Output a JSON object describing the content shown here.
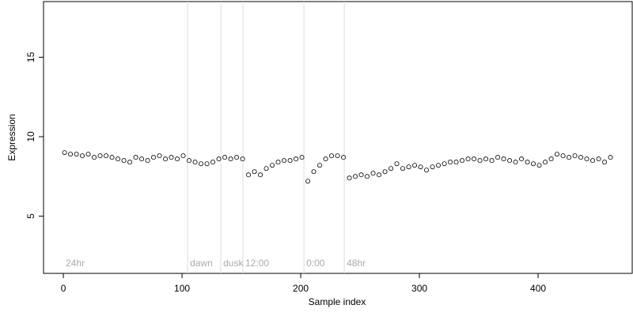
{
  "chart_data": {
    "type": "scatter",
    "xlabel": "Sample index",
    "ylabel": "Expression",
    "xlim": [
      -16.7,
      479.3
    ],
    "ylim": [
      1.4,
      18.5
    ],
    "xticks": [
      0,
      100,
      200,
      300,
      400
    ],
    "yticks": [
      5,
      10,
      15
    ],
    "vlines": [
      104.7,
      132.7,
      151.3,
      202.7,
      236.7
    ],
    "annotations": [
      {
        "text": "24hr",
        "x": 0
      },
      {
        "text": "dawn",
        "x": 104.7
      },
      {
        "text": "dusk",
        "x": 132.7
      },
      {
        "text": "12:00",
        "x": 151.3
      },
      {
        "text": "0:00",
        "x": 202.7
      },
      {
        "text": "48hr",
        "x": 236.7
      }
    ],
    "annotation_y": 2.0,
    "series": [
      {
        "color": "#ffffff",
        "x": [
          1,
          6,
          11,
          16,
          21,
          26,
          31,
          36,
          41,
          46,
          51,
          56,
          61,
          66,
          71,
          76,
          81,
          86,
          91,
          96,
          101,
          106,
          111,
          116,
          121,
          126,
          131,
          136,
          141,
          146,
          151,
          156,
          161,
          166,
          171,
          176,
          181,
          186,
          191,
          196,
          201,
          206,
          211,
          216,
          221,
          226,
          231,
          236,
          241,
          246,
          251,
          256,
          261,
          266,
          271,
          276,
          281,
          286,
          291,
          296,
          301,
          306,
          311,
          316,
          321,
          326,
          331,
          336,
          341,
          346,
          351,
          356,
          361,
          366,
          371,
          376,
          381,
          386,
          391,
          396,
          401,
          406,
          411,
          416,
          421,
          426,
          431,
          436,
          441,
          446,
          451,
          456,
          461
        ],
        "values": [
          9.0,
          8.9,
          8.9,
          8.8,
          8.9,
          8.7,
          8.8,
          8.8,
          8.7,
          8.6,
          8.5,
          8.4,
          8.7,
          8.6,
          8.5,
          8.7,
          8.8,
          8.6,
          8.7,
          8.6,
          8.8,
          8.5,
          8.4,
          8.3,
          8.3,
          8.4,
          8.6,
          8.7,
          8.6,
          8.7,
          8.6,
          7.6,
          7.8,
          7.6,
          8.0,
          8.2,
          8.4,
          8.5,
          8.5,
          8.6,
          8.7,
          7.2,
          7.8,
          8.2,
          8.6,
          8.8,
          8.8,
          8.7,
          7.4,
          7.5,
          7.6,
          7.5,
          7.7,
          7.6,
          7.8,
          8.0,
          8.3,
          8.0,
          8.1,
          8.2,
          8.1,
          7.9,
          8.1,
          8.2,
          8.3,
          8.4,
          8.4,
          8.5,
          8.6,
          8.6,
          8.5,
          8.6,
          8.5,
          8.7,
          8.6,
          8.5,
          8.4,
          8.6,
          8.4,
          8.3,
          8.2,
          8.4,
          8.6,
          8.9,
          8.8,
          8.7,
          8.8,
          8.7,
          8.6,
          8.5,
          8.6,
          8.4,
          8.7
        ]
      }
    ]
  }
}
